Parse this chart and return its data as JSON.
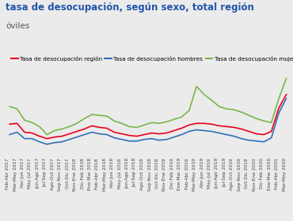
{
  "title": "tasa de desocupación, según sexo, total región",
  "subtitle": "óviles",
  "legend": [
    "Tasa de desocupación región",
    "Tasa de desocupación hombres",
    "Tasa de desocupación mujeres"
  ],
  "line_colors": [
    "#e8001c",
    "#3070b8",
    "#7ab648"
  ],
  "x_labels": [
    "Feb-Abr 2017",
    "Mar-May 2017",
    "Abr-Jun 2017",
    "May-Jul 2017",
    "Jun-Ago 2017",
    "Jul-Sep 2017",
    "Ago-Oct 2017",
    "Sep-Nov 2017",
    "Oct-Dic 2017",
    "Nov-Ene 2018",
    "Dic-Feb 2018",
    "Ene-Mar 2018",
    "Feb-Abr 2018",
    "Mar-May 2018",
    "Abr-Jun 2018",
    "May-Jul 2018",
    "Jun-Ago 2018",
    "Jul-Sep 2018",
    "Ago-Oct 2018",
    "Sep-Nov 2018",
    "Oct-Dic 2018",
    "Nov-Ene 2019",
    "Dic-Feb 2019",
    "Ene-Mar 2019",
    "Feb-Abr 2019",
    "Mar-May 2019",
    "Abr-Jun 2019",
    "May-Jul 2019",
    "Jun-Ago 2019",
    "Jul-Sep 2019",
    "Ago-Oct 2019",
    "Sep-Nov 2019",
    "Oct-Dic 2019",
    "Nov-Ene 2020",
    "Dic-Feb 2020",
    "Ene-Mar 2020",
    "Feb-Abr 2020",
    "Mar-May 2020"
  ],
  "region": [
    9.8,
    9.9,
    8.8,
    8.7,
    8.3,
    8.0,
    8.2,
    8.3,
    8.6,
    8.9,
    9.2,
    9.6,
    9.4,
    9.3,
    8.8,
    8.6,
    8.4,
    8.3,
    8.5,
    8.7,
    8.6,
    8.7,
    9.0,
    9.3,
    9.7,
    9.9,
    9.9,
    9.8,
    9.6,
    9.5,
    9.4,
    9.2,
    8.9,
    8.6,
    8.5,
    8.9,
    11.8,
    13.5
  ],
  "hombres": [
    8.5,
    8.8,
    8.0,
    8.0,
    7.6,
    7.3,
    7.5,
    7.6,
    7.9,
    8.2,
    8.5,
    8.8,
    8.6,
    8.5,
    8.1,
    7.9,
    7.7,
    7.7,
    7.9,
    8.0,
    7.8,
    7.9,
    8.2,
    8.5,
    8.9,
    9.1,
    9.0,
    8.9,
    8.7,
    8.5,
    8.3,
    8.0,
    7.8,
    7.7,
    7.6,
    8.1,
    11.2,
    13.0
  ],
  "mujeres": [
    12.0,
    11.7,
    10.3,
    10.0,
    9.5,
    8.5,
    9.0,
    9.2,
    9.5,
    9.9,
    10.5,
    11.0,
    10.9,
    10.8,
    10.2,
    9.9,
    9.5,
    9.4,
    9.7,
    10.0,
    9.9,
    10.1,
    10.4,
    10.7,
    11.5,
    14.5,
    13.5,
    12.8,
    12.0,
    11.7,
    11.6,
    11.3,
    10.9,
    10.5,
    10.2,
    10.0,
    13.0,
    15.5
  ],
  "ylim": [
    6,
    17
  ],
  "background_color": "#ebebeb",
  "grid_color": "#bbbbbb",
  "title_color": "#2255aa",
  "title_fontsize": 8.5,
  "subtitle_fontsize": 7.5,
  "subtitle_color": "#555555",
  "legend_fontsize": 5.2,
  "tick_fontsize": 4.2,
  "linewidth": 1.2
}
